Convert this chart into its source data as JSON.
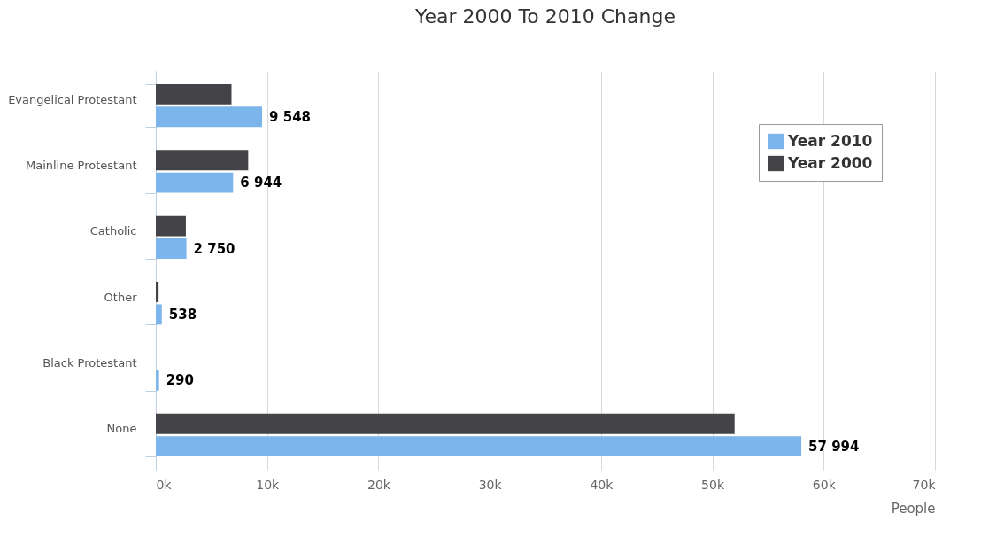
{
  "chart_data": {
    "type": "bar",
    "orientation": "horizontal",
    "title": "Year 2000 To 2010 Change",
    "xlabel": "People",
    "categories": [
      "Evangelical Protestant",
      "Mainline Protestant",
      "Catholic",
      "Other",
      "Black Protestant",
      "None"
    ],
    "series": [
      {
        "name": "Year 2010",
        "color": "#7cb5ec",
        "values": [
          9548,
          6944,
          2750,
          538,
          290,
          57994
        ],
        "value_labels": [
          "9 548",
          "6 944",
          "2 750",
          "538",
          "290",
          "57 994"
        ]
      },
      {
        "name": "Year 2000",
        "color": "#434348",
        "values": [
          6800,
          8300,
          2700,
          250,
          null,
          52000
        ]
      }
    ],
    "xlim": [
      0,
      70000
    ],
    "xticks": [
      {
        "value": 0,
        "label": "0k"
      },
      {
        "value": 10000,
        "label": "10k"
      },
      {
        "value": 20000,
        "label": "20k"
      },
      {
        "value": 30000,
        "label": "30k"
      },
      {
        "value": 40000,
        "label": "40k"
      },
      {
        "value": 50000,
        "label": "50k"
      },
      {
        "value": 60000,
        "label": "60k"
      },
      {
        "value": 70000,
        "label": "70k"
      }
    ],
    "grid": "x",
    "legend": "top right"
  }
}
